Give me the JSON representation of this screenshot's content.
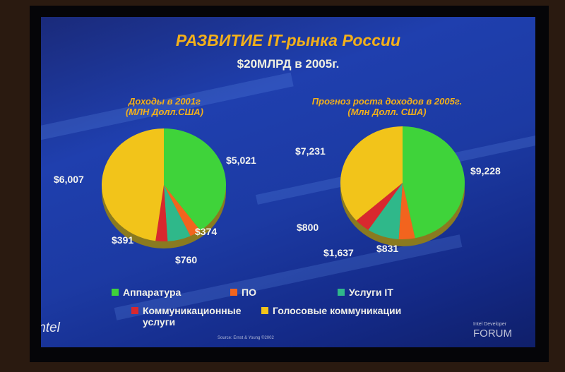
{
  "slide": {
    "title": "РАЗВИТИЕ  IT-рынка России",
    "subtitle": "$20МЛРД   в  2005г.",
    "source": "Source: Ernst & Young ©2002",
    "logo_left": "intel",
    "logo_right_small": "Intel Developer",
    "logo_right_big": "FORUM"
  },
  "colors": {
    "Аппаратура": "#3fd33a",
    "ПО": "#f2641e",
    "Услуги IT": "#2fb88a",
    "Коммуникационные услуги": "#d8282e",
    "Голосовые коммуникации": "#f2c41a"
  },
  "legend": [
    {
      "label": "Аппаратура",
      "color": "#3fd33a"
    },
    {
      "label": "ПО",
      "color": "#f2641e"
    },
    {
      "label": "Услуги IT",
      "color": "#2fb88a"
    },
    {
      "label": "Коммуникационные услуги",
      "color": "#d8282e"
    },
    {
      "label": "Голосовые коммуникации",
      "color": "#f2c41a"
    }
  ],
  "chart_data": [
    {
      "type": "pie",
      "title": "Доходы  в 2001г",
      "subtitle": "(МЛН Долл.США)",
      "categories": [
        "Аппаратура",
        "ПО",
        "Услуги IT",
        "Коммуникационные услуги",
        "Голосовые коммуникации"
      ],
      "values": [
        5021,
        374,
        760,
        391,
        6007
      ],
      "labels": [
        "$5,021",
        "$374",
        "$760",
        "$391",
        "$6,007"
      ]
    },
    {
      "type": "pie",
      "title": "Прогноз роста доходов в 2005г.",
      "subtitle": "(Млн Долл. США)",
      "categories": [
        "Аппаратура",
        "ПО",
        "Услуги IT",
        "Коммуникационные услуги",
        "Голосовые коммуникации"
      ],
      "values": [
        9228,
        831,
        1637,
        800,
        7231
      ],
      "labels": [
        "$9,228",
        "$831",
        "$1,637",
        "$800",
        "$7,231"
      ]
    }
  ]
}
